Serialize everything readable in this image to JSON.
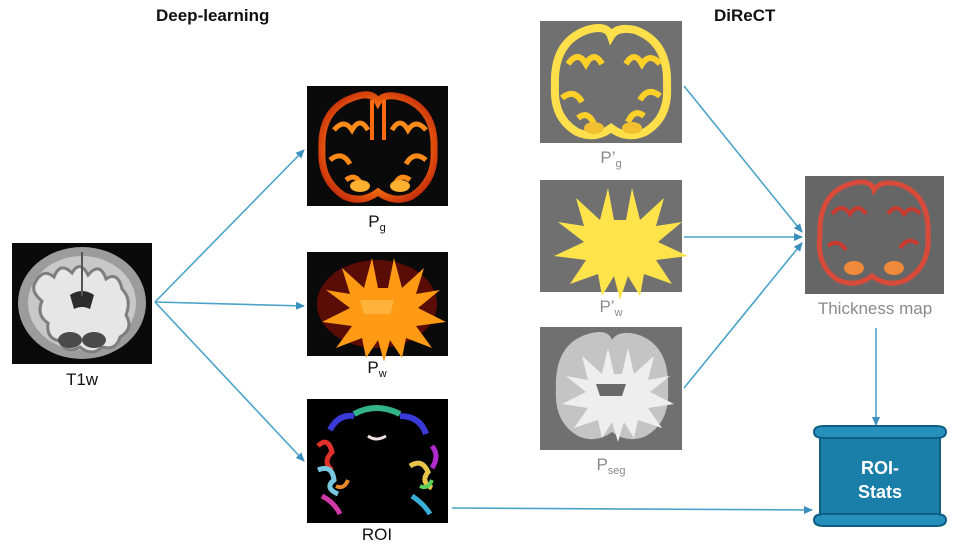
{
  "titles": {
    "deep_learning": "Deep-learning",
    "direct": "DiReCT"
  },
  "nodes": {
    "t1w": {
      "label": "T1w"
    },
    "pg": {
      "label": "P",
      "sub": "g"
    },
    "pw": {
      "label": "P",
      "sub": "w"
    },
    "roi": {
      "label": "ROI"
    },
    "pg_prime": {
      "label": "P’",
      "sub": "g"
    },
    "pw_prime": {
      "label": "P’",
      "sub": "w"
    },
    "pseg": {
      "label": "P",
      "sub": "seg"
    },
    "thickness": {
      "label": "Thickness map"
    },
    "roi_stats": {
      "line1": "ROI-",
      "line2": "Stats"
    }
  },
  "colors": {
    "arrow": "#4aa3c8",
    "scroll_fill": "#1a7fa8",
    "scroll_dark": "#0f5f82",
    "panel_dark": "#0a0a0a",
    "panel_grey": "#707070"
  }
}
